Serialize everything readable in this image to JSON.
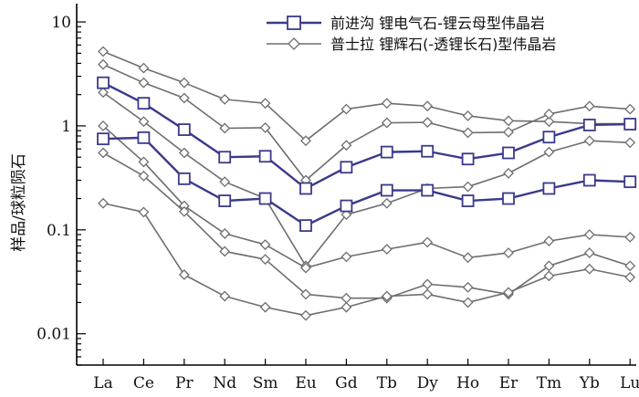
{
  "chart_data": {
    "type": "line",
    "ylabel": "样品/球粒陨石",
    "xlabel": "",
    "yscale": "log",
    "ylim": [
      0.005,
      15
    ],
    "yticks": [
      10,
      1,
      0.1,
      0.01
    ],
    "ytick_labels": [
      "10",
      "1",
      "0.1",
      "0.01"
    ],
    "categories": [
      "La",
      "Ce",
      "Pr",
      "Nd",
      "Sm",
      "Eu",
      "Gd",
      "Tb",
      "Dy",
      "Ho",
      "Er",
      "Tm",
      "Yb",
      "Lu"
    ],
    "grid": false,
    "legend_position": "top-right",
    "legend": [
      {
        "label": "前进沟  锂电气石-锂云母型伟晶岩",
        "marker": "square",
        "color": "#3a3a8c"
      },
      {
        "label": "普士拉  锂辉石(-透锂长石)型伟晶岩",
        "marker": "diamond",
        "color": "#6e6e6e"
      }
    ],
    "series": [
      {
        "group": 0,
        "values": [
          2.6,
          1.65,
          0.92,
          0.5,
          0.51,
          0.25,
          0.4,
          0.56,
          0.57,
          0.48,
          0.55,
          0.78,
          1.02,
          1.04
        ]
      },
      {
        "group": 0,
        "values": [
          0.75,
          0.77,
          0.31,
          0.19,
          0.2,
          0.11,
          0.17,
          0.24,
          0.24,
          0.19,
          0.2,
          0.25,
          0.3,
          0.29
        ]
      },
      {
        "group": 1,
        "values": [
          5.2,
          3.6,
          2.6,
          1.8,
          1.65,
          0.72,
          1.45,
          1.65,
          1.55,
          1.25,
          1.12,
          1.1,
          1.05,
          1.05
        ]
      },
      {
        "group": 1,
        "values": [
          3.9,
          2.6,
          1.85,
          0.95,
          0.96,
          0.3,
          0.65,
          1.07,
          1.08,
          0.86,
          0.87,
          1.3,
          1.55,
          1.45
        ]
      },
      {
        "group": 1,
        "values": [
          2.1,
          1.1,
          0.55,
          0.29,
          0.2,
          0.045,
          0.14,
          0.18,
          0.25,
          0.26,
          0.35,
          0.56,
          0.72,
          0.69
        ]
      },
      {
        "group": 1,
        "values": [
          1.0,
          0.45,
          0.17,
          0.092,
          0.072,
          0.043,
          0.055,
          0.065,
          0.076,
          0.054,
          0.06,
          0.078,
          0.09,
          0.085
        ]
      },
      {
        "group": 1,
        "values": [
          0.55,
          0.33,
          0.15,
          0.062,
          0.052,
          0.024,
          0.022,
          0.022,
          0.03,
          0.028,
          0.024,
          0.045,
          0.06,
          0.045
        ]
      },
      {
        "group": 1,
        "values": [
          0.18,
          0.148,
          0.037,
          0.023,
          0.018,
          0.015,
          0.018,
          0.023,
          0.024,
          0.02,
          0.025,
          0.036,
          0.042,
          0.035
        ]
      }
    ]
  }
}
